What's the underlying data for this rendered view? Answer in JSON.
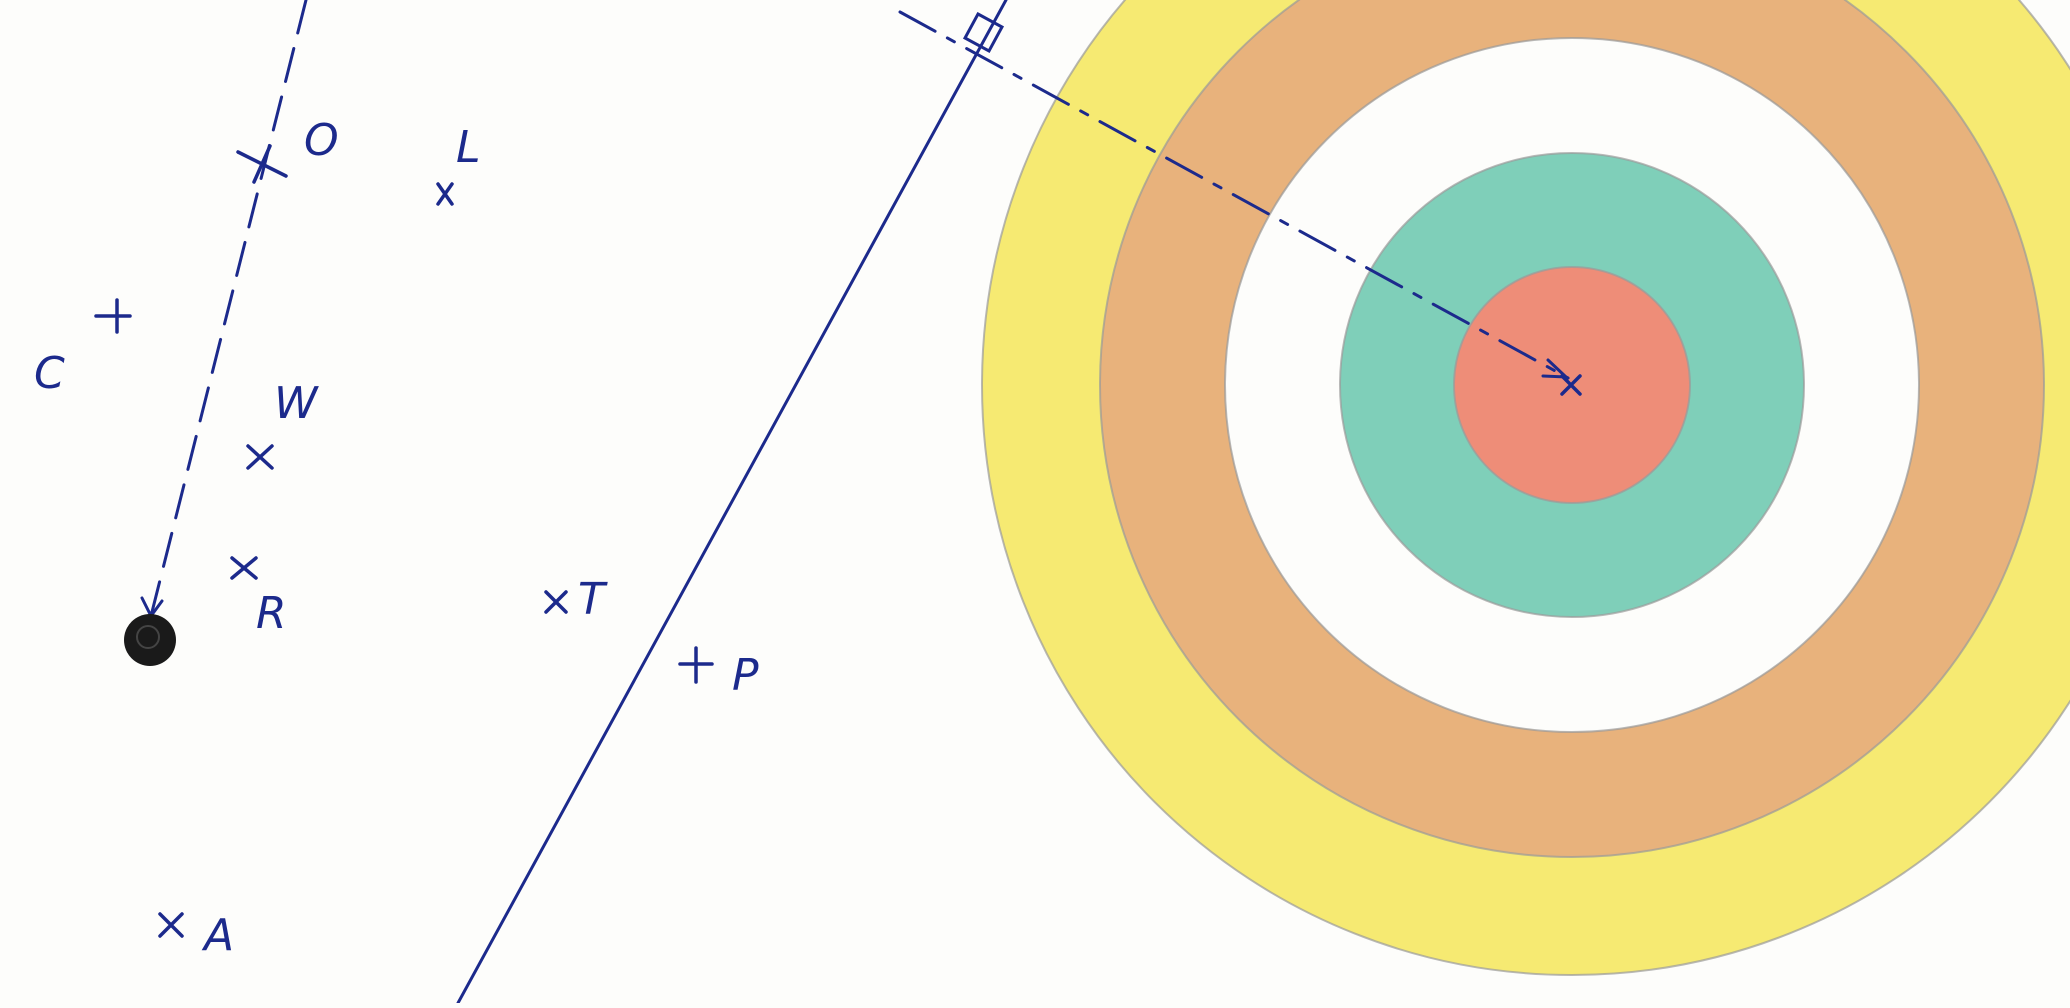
{
  "diagram": {
    "colors": {
      "ink": "#1c2a8c",
      "ring_yellow": "#f6ea72",
      "ring_orange": "#e8b27c",
      "ring_white": "#fdfdfb",
      "ring_teal": "#7fcfb9",
      "ring_red": "#ee8d78",
      "dot": "#1a1a1a"
    },
    "points": [
      {
        "id": "O",
        "label": "O",
        "marker": "cross"
      },
      {
        "id": "L",
        "label": "L",
        "marker": "cross"
      },
      {
        "id": "C",
        "label": "C",
        "marker": "cross"
      },
      {
        "id": "W",
        "label": "W",
        "marker": "cross"
      },
      {
        "id": "R",
        "label": "R",
        "marker": "cross"
      },
      {
        "id": "T",
        "label": "T",
        "marker": "cross"
      },
      {
        "id": "P",
        "label": "P",
        "marker": "plus"
      },
      {
        "id": "A",
        "label": "A",
        "marker": "cross"
      }
    ],
    "target_center_marker": "cross",
    "right_angle_marker": "square"
  }
}
